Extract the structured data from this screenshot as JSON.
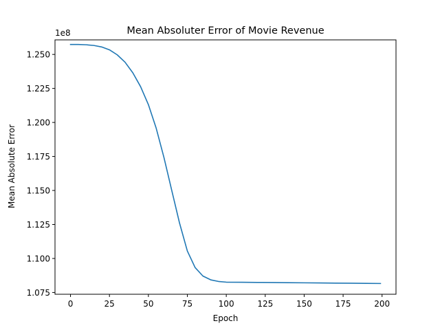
{
  "chart_data": {
    "type": "line",
    "title": "Mean Absoluter Error of Movie Revenue",
    "xlabel": "Epoch",
    "ylabel": "Mean Absolute Error",
    "y_offset_label": "1e8",
    "xlim": [
      -9.95,
      208.95
    ],
    "ylim": [
      1.0737,
      1.2607
    ],
    "x_ticks": [
      0,
      25,
      50,
      75,
      100,
      125,
      150,
      175,
      200
    ],
    "y_ticks": [
      1.075,
      1.1,
      1.125,
      1.15,
      1.175,
      1.2,
      1.225,
      1.25
    ],
    "y_tick_labels": [
      "1.075",
      "1.100",
      "1.125",
      "1.150",
      "1.175",
      "1.200",
      "1.225",
      "1.250"
    ],
    "grid": false,
    "series": [
      {
        "color": "#1f77b4",
        "x": [
          0,
          5,
          10,
          15,
          20,
          25,
          30,
          35,
          40,
          45,
          50,
          55,
          60,
          65,
          70,
          75,
          80,
          85,
          90,
          95,
          100,
          110,
          120,
          130,
          140,
          150,
          160,
          170,
          180,
          190,
          199
        ],
        "y": [
          1.2573,
          1.2573,
          1.2571,
          1.2566,
          1.2555,
          1.2534,
          1.2497,
          1.2443,
          1.2365,
          1.2263,
          1.2131,
          1.1958,
          1.1742,
          1.15,
          1.126,
          1.1055,
          1.0933,
          1.0871,
          1.0843,
          1.0831,
          1.0826,
          1.0825,
          1.0824,
          1.0823,
          1.0822,
          1.0821,
          1.082,
          1.0819,
          1.0818,
          1.0817,
          1.0816
        ]
      }
    ]
  }
}
